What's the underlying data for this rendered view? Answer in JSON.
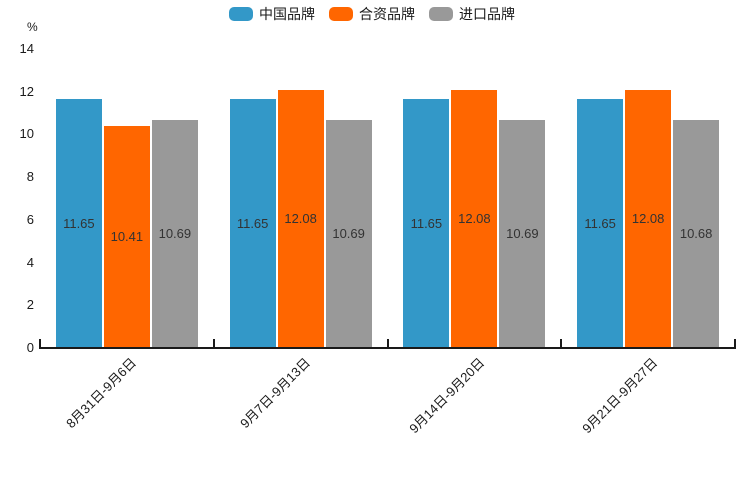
{
  "chart_data": {
    "type": "bar",
    "title": "",
    "ylabel": "%",
    "xlabel": "",
    "categories": [
      "8月31日-9月6日",
      "9月7日-9月13日",
      "9月14日-9月20日",
      "9月21日-9月27日"
    ],
    "series": [
      {
        "name": "中国品牌",
        "color": "#3398C8",
        "values": [
          11.65,
          11.65,
          11.65,
          11.65
        ]
      },
      {
        "name": "合资品牌",
        "color": "#FF6600",
        "values": [
          10.41,
          12.08,
          12.08,
          12.08
        ]
      },
      {
        "name": "进口品牌",
        "color": "#999999",
        "values": [
          10.69,
          10.69,
          10.69,
          10.68
        ]
      }
    ],
    "ylim": [
      0,
      14
    ],
    "yticks": [
      0,
      2,
      4,
      6,
      8,
      10,
      12,
      14
    ],
    "bar_labels": true,
    "grid": false,
    "legend_position": "top-center"
  },
  "colors": {
    "axis": "#1a1a1a",
    "tick_text": "#1a1a1a",
    "bar_label_text": "#333333",
    "background": "#ffffff"
  }
}
